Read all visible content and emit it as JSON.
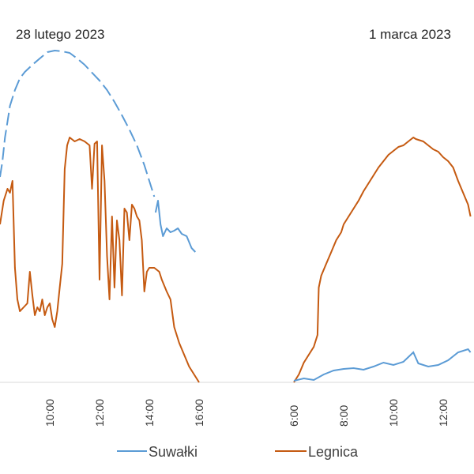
{
  "chart_data": {
    "type": "line",
    "date_labels": [
      "28 lutego 2023",
      "1 marca 2023"
    ],
    "x_tick_labels": [
      "10:00",
      "12:00",
      "14:00",
      "16:00",
      "6:00",
      "8:00",
      "10:00",
      "12:00"
    ],
    "grid": false,
    "legend_position": "bottom",
    "series": [
      {
        "name": "Suwałki",
        "color": "#5b9bd5",
        "panels": [
          {
            "dashed": true,
            "points": [
              [
                8.0,
                2.6
              ],
              [
                8.1,
                2.8
              ],
              [
                8.2,
                3.1
              ],
              [
                8.3,
                3.3
              ],
              [
                8.4,
                3.5
              ],
              [
                8.6,
                3.7
              ],
              [
                8.8,
                3.85
              ],
              [
                9.0,
                3.93
              ],
              [
                9.3,
                4.02
              ],
              [
                9.6,
                4.1
              ],
              [
                9.9,
                4.18
              ],
              [
                10.2,
                4.2
              ],
              [
                10.5,
                4.19
              ],
              [
                10.8,
                4.17
              ],
              [
                11.1,
                4.1
              ],
              [
                11.4,
                4.02
              ],
              [
                11.7,
                3.92
              ],
              [
                12.0,
                3.82
              ],
              [
                12.3,
                3.7
              ],
              [
                12.6,
                3.55
              ],
              [
                12.9,
                3.38
              ],
              [
                13.2,
                3.2
              ],
              [
                13.5,
                3.0
              ],
              [
                13.8,
                2.75
              ],
              [
                14.0,
                2.55
              ],
              [
                14.2,
                2.35
              ]
            ]
          },
          {
            "dashed": false,
            "points": [
              [
                14.25,
                2.15
              ],
              [
                14.35,
                2.3
              ],
              [
                14.45,
                2.0
              ],
              [
                14.55,
                1.85
              ],
              [
                14.7,
                1.95
              ],
              [
                14.85,
                1.9
              ],
              [
                15.0,
                1.92
              ],
              [
                15.15,
                1.95
              ],
              [
                15.3,
                1.88
              ],
              [
                15.5,
                1.85
              ],
              [
                15.7,
                1.7
              ],
              [
                15.85,
                1.65
              ]
            ]
          }
        ]
      },
      {
        "name": "Legnica",
        "color": "#c55a11",
        "panels": [
          {
            "dashed": false,
            "points": [
              [
                8.0,
                2.0
              ],
              [
                8.15,
                2.3
              ],
              [
                8.3,
                2.45
              ],
              [
                8.4,
                2.4
              ],
              [
                8.5,
                2.55
              ],
              [
                8.6,
                1.45
              ],
              [
                8.7,
                1.05
              ],
              [
                8.8,
                0.9
              ],
              [
                8.95,
                0.95
              ],
              [
                9.1,
                1.0
              ],
              [
                9.2,
                1.4
              ],
              [
                9.3,
                1.1
              ],
              [
                9.4,
                0.85
              ],
              [
                9.5,
                0.95
              ],
              [
                9.6,
                0.9
              ],
              [
                9.7,
                1.05
              ],
              [
                9.8,
                0.85
              ],
              [
                9.9,
                0.95
              ],
              [
                10.0,
                1.0
              ],
              [
                10.1,
                0.8
              ],
              [
                10.2,
                0.7
              ],
              [
                10.3,
                0.9
              ],
              [
                10.4,
                1.2
              ],
              [
                10.5,
                1.5
              ],
              [
                10.6,
                2.7
              ],
              [
                10.7,
                3.0
              ],
              [
                10.8,
                3.1
              ],
              [
                11.0,
                3.05
              ],
              [
                11.2,
                3.08
              ],
              [
                11.4,
                3.05
              ],
              [
                11.6,
                3.0
              ],
              [
                11.7,
                2.45
              ],
              [
                11.8,
                3.02
              ],
              [
                11.9,
                3.05
              ],
              [
                12.0,
                1.3
              ],
              [
                12.1,
                3.0
              ],
              [
                12.2,
                2.55
              ],
              [
                12.3,
                1.6
              ],
              [
                12.4,
                1.05
              ],
              [
                12.5,
                2.1
              ],
              [
                12.6,
                1.2
              ],
              [
                12.7,
                2.05
              ],
              [
                12.8,
                1.8
              ],
              [
                12.9,
                1.1
              ],
              [
                13.0,
                2.2
              ],
              [
                13.1,
                2.15
              ],
              [
                13.2,
                1.8
              ],
              [
                13.3,
                2.25
              ],
              [
                13.4,
                2.2
              ],
              [
                13.5,
                2.1
              ],
              [
                13.6,
                2.05
              ],
              [
                13.7,
                1.8
              ],
              [
                13.8,
                1.15
              ],
              [
                13.9,
                1.4
              ],
              [
                14.0,
                1.45
              ],
              [
                14.2,
                1.45
              ],
              [
                14.4,
                1.4
              ],
              [
                14.5,
                1.3
              ],
              [
                14.7,
                1.15
              ],
              [
                14.85,
                1.05
              ],
              [
                15.0,
                0.7
              ],
              [
                15.2,
                0.5
              ],
              [
                15.4,
                0.35
              ],
              [
                15.6,
                0.2
              ],
              [
                15.8,
                0.1
              ],
              [
                16.0,
                0.0
              ]
            ]
          },
          {
            "dashed": false,
            "points": [
              [
                6.0,
                0.0
              ],
              [
                6.2,
                0.1
              ],
              [
                6.4,
                0.25
              ],
              [
                6.6,
                0.35
              ],
              [
                6.8,
                0.45
              ],
              [
                6.95,
                0.6
              ],
              [
                7.0,
                1.2
              ],
              [
                7.1,
                1.35
              ],
              [
                7.3,
                1.5
              ],
              [
                7.5,
                1.65
              ],
              [
                7.7,
                1.8
              ],
              [
                7.9,
                1.9
              ],
              [
                8.0,
                2.0
              ],
              [
                8.2,
                2.1
              ],
              [
                8.4,
                2.2
              ],
              [
                8.6,
                2.3
              ],
              [
                8.8,
                2.42
              ],
              [
                9.0,
                2.52
              ],
              [
                9.2,
                2.62
              ],
              [
                9.4,
                2.72
              ],
              [
                9.6,
                2.8
              ],
              [
                9.8,
                2.88
              ],
              [
                10.0,
                2.93
              ],
              [
                10.2,
                2.98
              ],
              [
                10.4,
                3.0
              ],
              [
                10.6,
                3.05
              ],
              [
                10.8,
                3.1
              ],
              [
                10.9,
                3.08
              ],
              [
                11.0,
                3.07
              ],
              [
                11.2,
                3.05
              ],
              [
                11.4,
                3.0
              ],
              [
                11.6,
                2.95
              ],
              [
                11.8,
                2.92
              ],
              [
                12.0,
                2.85
              ],
              [
                12.2,
                2.8
              ],
              [
                12.4,
                2.72
              ],
              [
                12.6,
                2.55
              ],
              [
                12.8,
                2.4
              ],
              [
                13.0,
                2.25
              ],
              [
                13.1,
                2.1
              ]
            ]
          }
        ]
      }
    ]
  }
}
